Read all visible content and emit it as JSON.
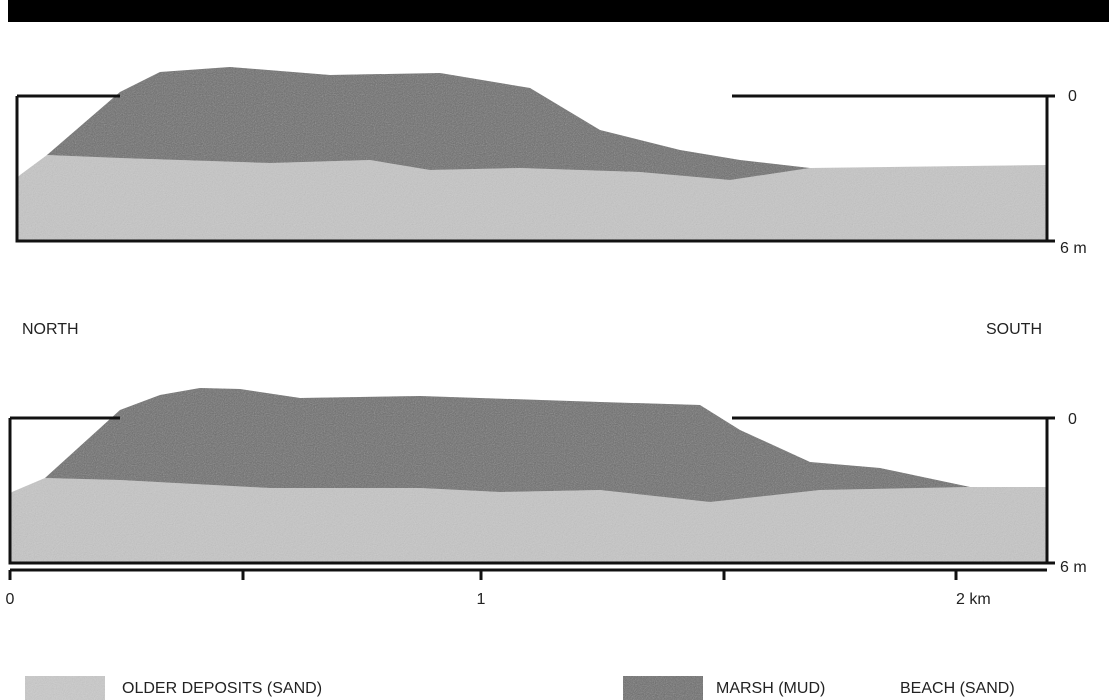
{
  "sections": [
    {
      "depth_labels": [
        "0",
        "6 m"
      ]
    },
    {
      "depth_labels": [
        "0",
        "6 m"
      ]
    }
  ],
  "orientation": {
    "left": "NORTH",
    "right": "SOUTH"
  },
  "distance_axis": [
    "0",
    "1",
    "2 km"
  ],
  "legend": [
    "OLDER DEPOSITS (SAND)",
    "MARSH (MUD)",
    "BEACH (SAND)"
  ]
}
